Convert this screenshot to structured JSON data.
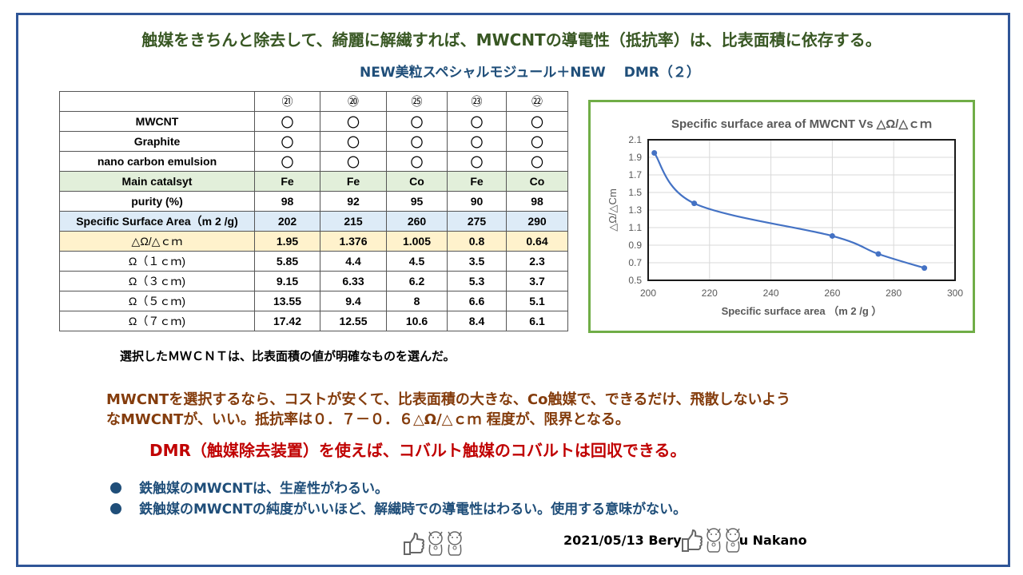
{
  "title": "触媒をきちんと除去して、綺麗に解繊すれば、MWCNTの導電性（抵抗率）は、比表面積に依存する。",
  "subtitle": "NEW美粒スペシャルモジュール＋NEW　 DMR（２）",
  "table": {
    "header": [
      "",
      "㉑",
      "⑳",
      "㉕",
      "㉓",
      "㉒"
    ],
    "rows": [
      {
        "label": "MWCNT",
        "values": [
          "〇",
          "〇",
          "〇",
          "〇",
          "〇"
        ]
      },
      {
        "label": "Graphite",
        "values": [
          "〇",
          "〇",
          "〇",
          "〇",
          "〇"
        ]
      },
      {
        "label": "nano carbon emulsion",
        "values": [
          "〇",
          "〇",
          "〇",
          "〇",
          "〇"
        ]
      },
      {
        "label": "Main catalsyt",
        "values": [
          "Fe",
          "Fe",
          "Co",
          "Fe",
          "Co"
        ]
      },
      {
        "label": "purity (%)",
        "values": [
          "98",
          "92",
          "95",
          "90",
          "98"
        ]
      },
      {
        "label": "Specific Surface Area（m 2 /g)",
        "values": [
          "202",
          "215",
          "260",
          "275",
          "290"
        ]
      },
      {
        "label": "△Ω/△ｃｍ",
        "values": [
          "1.95",
          "1.376",
          "1.005",
          "0.8",
          "0.64"
        ]
      },
      {
        "label": "Ω（１ｃｍ)",
        "values": [
          "5.85",
          "4.4",
          "4.5",
          "3.5",
          "2.3"
        ]
      },
      {
        "label": "Ω（３ｃｍ)",
        "values": [
          "9.15",
          "6.33",
          "6.2",
          "5.3",
          "3.7"
        ]
      },
      {
        "label": "Ω（５ｃｍ)",
        "values": [
          "13.55",
          "9.4",
          "8",
          "6.6",
          "5.1"
        ]
      },
      {
        "label": "Ω（７ｃｍ)",
        "values": [
          "17.42",
          "12.55",
          "10.6",
          "8.4",
          "6.1"
        ]
      }
    ]
  },
  "chart_data": {
    "type": "line",
    "title": "Specific surface area of MWCNT Vs △Ω/△ｃｍ",
    "xlabel": "Specific surface area （m 2 /g ）",
    "ylabel": "△Ω/△Cm",
    "x": [
      202,
      215,
      260,
      275,
      290
    ],
    "y": [
      1.95,
      1.376,
      1.005,
      0.8,
      0.64
    ],
    "xlim": [
      200,
      300
    ],
    "ylim": [
      0.5,
      2.1
    ],
    "xticks": [
      "200",
      "220",
      "240",
      "260",
      "280",
      "300"
    ],
    "yticks": [
      "0.5",
      "0.7",
      "0.9",
      "1.1",
      "1.3",
      "1.5",
      "1.7",
      "1.9",
      "2.1"
    ],
    "grid": true,
    "smooth": true,
    "color": "#4472c4",
    "legend": "none"
  },
  "note": "選択したＭＷＣＮＴは、比表面積の値が明確なものを選んだ。",
  "conclusion": [
    "MWCNTを選択するなら、コストが安くて、比表面積の大きな、Co触媒で、できるだけ、飛散しないよう",
    "なMWCNTが、いい。抵抗率は０．７－０．６△Ω/△ｃｍ 程度が、限界となる。"
  ],
  "dmr_note": "DMR（触媒除去装置）を使えば、コバルト触媒のコバルトは回収できる。",
  "bullets": [
    "鉄触媒のMWCNTは、生産性がわるい。",
    "鉄触媒のMWCNTの純度がいいほど、解繊時での導電性はわるい。使用する意味がない。"
  ],
  "signature": {
    "left": "2021/05/13 Bery",
    "right": "u Nakano"
  },
  "icons": [
    "thumbs-up",
    "lucky-cat",
    "lucky-cat"
  ]
}
